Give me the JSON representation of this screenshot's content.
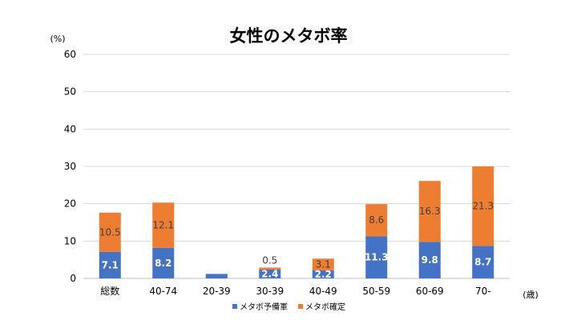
{
  "chart_data": {
    "type": "bar",
    "stacked": true,
    "title": "女性のメタボ率",
    "ylabel": "(%)",
    "xlabel": "(歳)",
    "ylim": [
      0,
      60
    ],
    "yticks": [
      0,
      10,
      20,
      30,
      40,
      50,
      60
    ],
    "grid": true,
    "legend_position": "bottom",
    "categories": [
      "総数",
      "40-74",
      "20-39",
      "30-39",
      "40-49",
      "50-59",
      "60-69",
      "70-"
    ],
    "series": [
      {
        "name": "メタボ予備軍",
        "color": "#4472C4",
        "values": [
          7.1,
          8.2,
          1.2,
          2.4,
          2.2,
          11.3,
          9.8,
          8.7
        ],
        "labels": [
          "7.1",
          "8.2",
          "",
          "2.4",
          "2.2",
          "11.3",
          "9.8",
          "8.7"
        ]
      },
      {
        "name": "メタボ確定",
        "color": "#ED7D31",
        "values": [
          10.5,
          12.1,
          0,
          0.5,
          3.1,
          8.6,
          16.3,
          21.3
        ],
        "labels": [
          "10.5",
          "12.1",
          "",
          "0.5",
          "3.1",
          "8.6",
          "16.3",
          "21.3"
        ]
      }
    ]
  }
}
